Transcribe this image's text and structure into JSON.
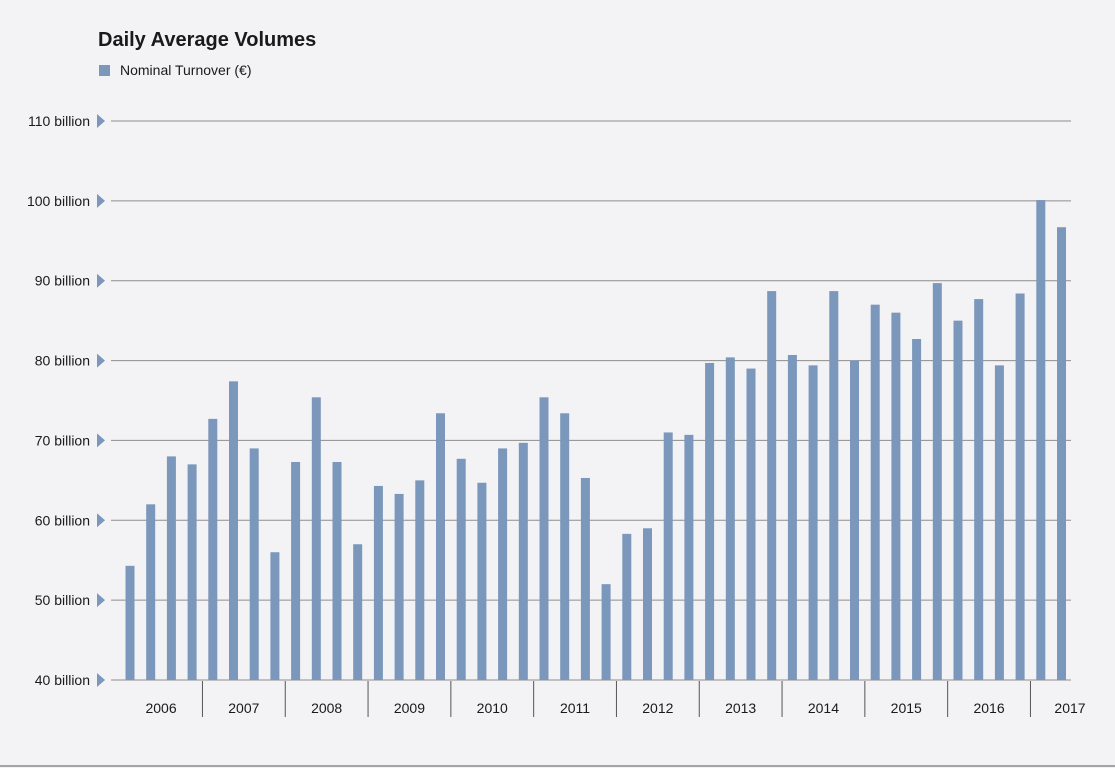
{
  "chart_data": {
    "type": "bar",
    "title": "Daily Average Volumes",
    "legend_position": "top-left",
    "series": [
      {
        "name": "Nominal Turnover (€)",
        "color": "#7b97bb",
        "values": [
          54.3,
          62.0,
          68.0,
          67.0,
          72.7,
          77.4,
          69.0,
          56.0,
          67.3,
          75.4,
          67.3,
          57.0,
          64.3,
          63.3,
          65.0,
          73.4,
          67.7,
          64.7,
          69.0,
          69.7,
          75.4,
          73.4,
          65.3,
          52.0,
          58.3,
          59.0,
          71.0,
          70.7,
          79.7,
          80.4,
          79.0,
          88.7,
          80.7,
          79.4,
          88.7,
          80.0,
          87.0,
          86.0,
          82.7,
          89.7,
          85.0,
          87.7,
          79.4,
          88.4,
          100.1,
          96.7
        ]
      }
    ],
    "years": [
      "2006",
      "2007",
      "2008",
      "2009",
      "2010",
      "2011",
      "2012",
      "2013",
      "2014",
      "2015",
      "2016",
      "2017"
    ],
    "bars_per_year": [
      4,
      4,
      4,
      4,
      4,
      4,
      4,
      4,
      4,
      4,
      4,
      2
    ],
    "y_ticks": [
      40,
      50,
      60,
      70,
      80,
      90,
      100,
      110
    ],
    "y_tick_labels": [
      "40 billion",
      "50 billion",
      "60 billion",
      "70 billion",
      "80 billion",
      "90 billion",
      "100 billion",
      "110 billion"
    ],
    "ylim": [
      40,
      110
    ],
    "grid": true,
    "colors": {
      "grid": "#8e8e8e",
      "marker": "#7b97bb",
      "axis": "#555555"
    }
  }
}
